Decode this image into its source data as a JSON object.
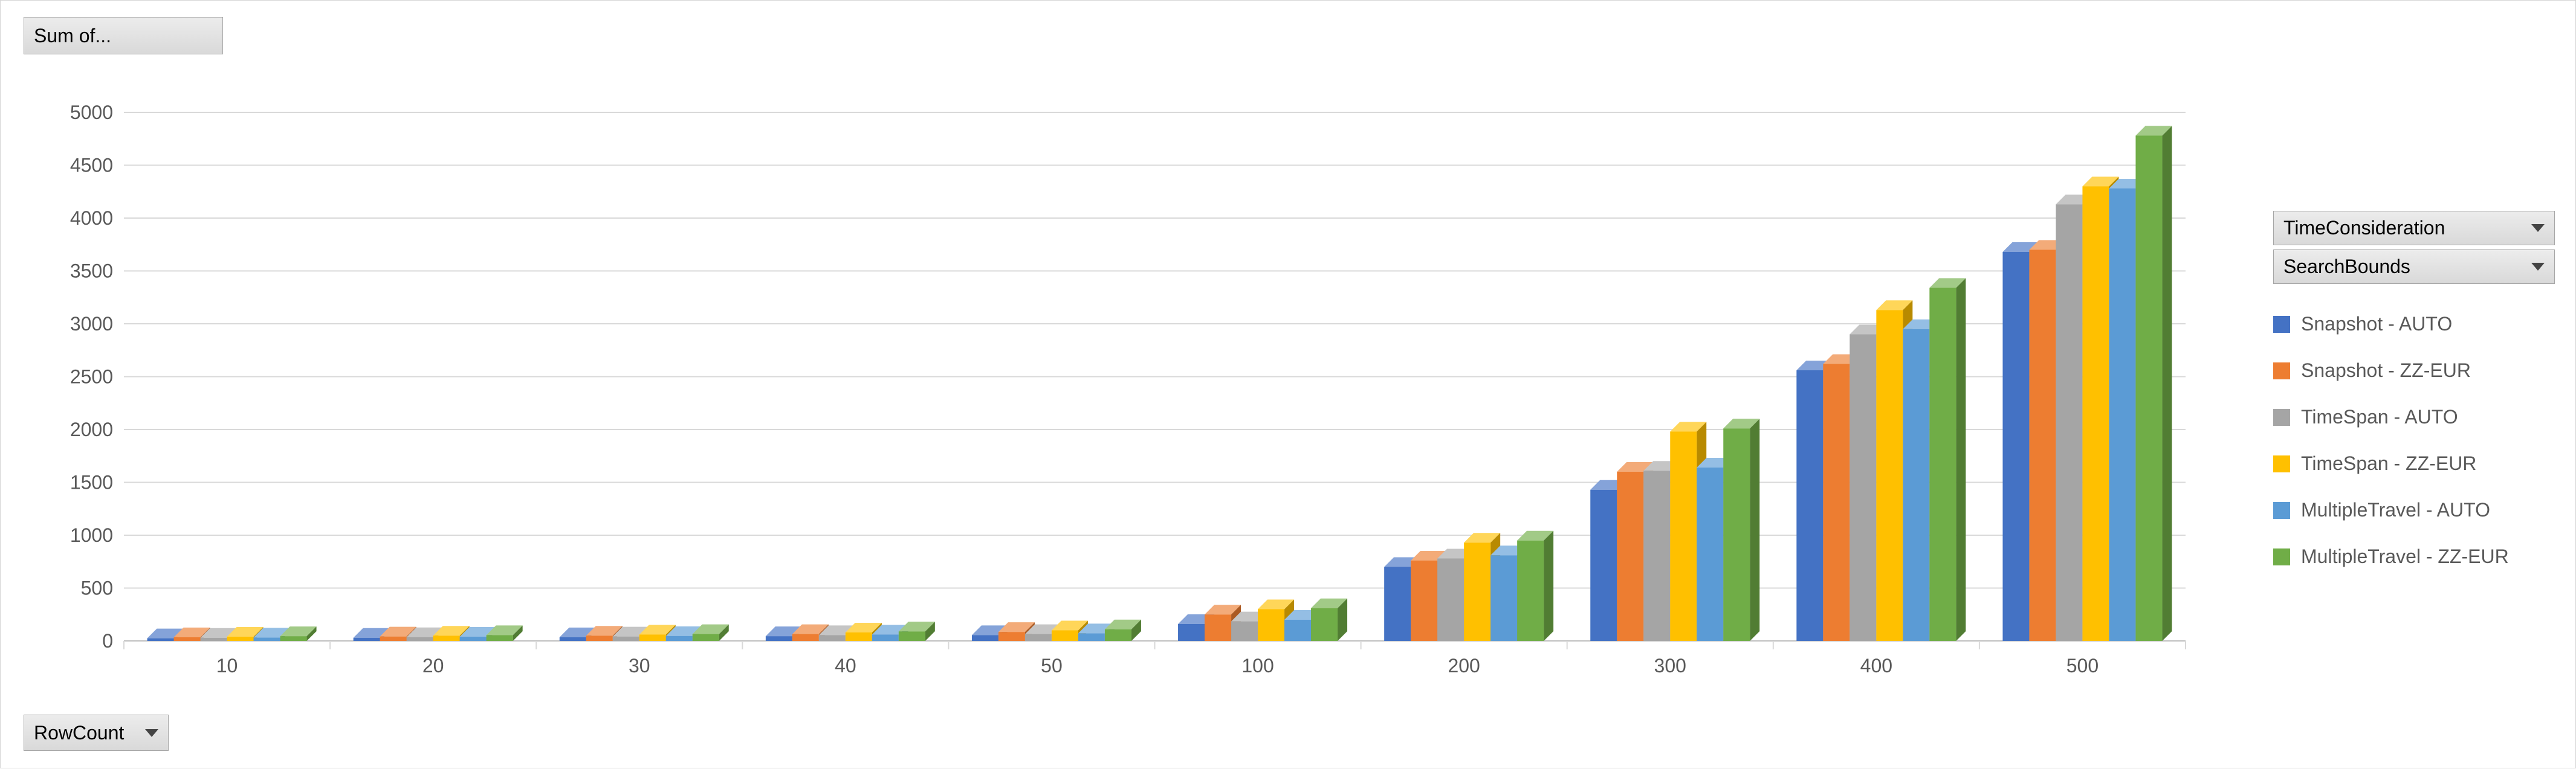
{
  "buttons": {
    "sum_of": "Sum of...",
    "row_count": "RowCount",
    "time_consideration": "TimeConsideration",
    "search_bounds": "SearchBounds"
  },
  "chart_data": {
    "type": "bar",
    "style": "3d-clustered-column",
    "title": "",
    "xlabel": "RowCount",
    "ylabel": "",
    "categories": [
      "10",
      "20",
      "30",
      "40",
      "50",
      "100",
      "200",
      "300",
      "400",
      "500"
    ],
    "series": [
      {
        "name": "Snapshot - AUTO",
        "color": "#4472C4",
        "values": [
          25,
          30,
          35,
          45,
          55,
          160,
          700,
          1430,
          2560,
          3680
        ]
      },
      {
        "name": "Snapshot - ZZ-EUR",
        "color": "#ED7D31",
        "values": [
          35,
          42,
          50,
          65,
          85,
          250,
          760,
          1600,
          2620,
          3700
        ]
      },
      {
        "name": "TimeSpan - AUTO",
        "color": "#A5A5A5",
        "values": [
          30,
          36,
          42,
          55,
          65,
          185,
          780,
          1610,
          2900,
          4130
        ]
      },
      {
        "name": "TimeSpan - ZZ-EUR",
        "color": "#FFC000",
        "values": [
          40,
          50,
          60,
          80,
          100,
          300,
          930,
          1980,
          3130,
          4300
        ]
      },
      {
        "name": "MultipleTravel - AUTO",
        "color": "#5B9BD5",
        "values": [
          32,
          40,
          46,
          60,
          72,
          200,
          810,
          1640,
          2950,
          4280
        ]
      },
      {
        "name": "MultipleTravel - ZZ-EUR",
        "color": "#70AD47",
        "values": [
          45,
          55,
          65,
          90,
          110,
          310,
          950,
          2010,
          3340,
          4780
        ]
      }
    ],
    "ylim": [
      0,
      5000
    ],
    "ytick_step": 500,
    "grid": true,
    "legend_position": "right",
    "colors": {
      "gridline": "#D9D9D9",
      "axis_line": "#BFBFBF",
      "axis_text": "#595959",
      "legend_text": "#595959"
    }
  }
}
